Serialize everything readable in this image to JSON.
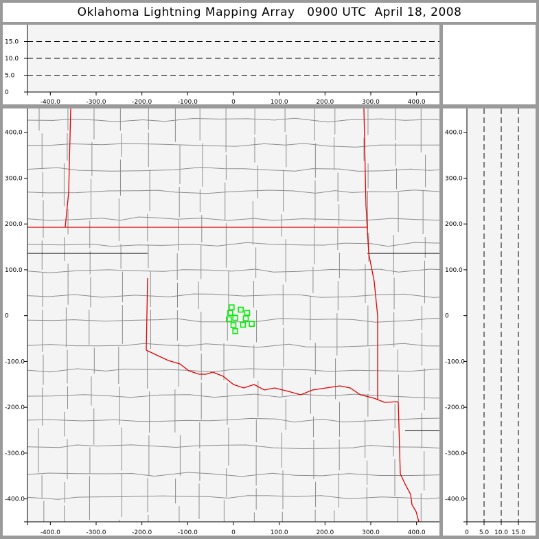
{
  "title": "Oklahoma Lightning Mapping Array   0900 UTC  April 18, 2008",
  "colors": {
    "background": "#9a9a9a",
    "plot": "#f4f4f4",
    "state_border": "#e00000",
    "county": "#8c8c8c",
    "source": "#00ee00"
  },
  "chart_data": [
    {
      "type": "line",
      "panel": "altitude-vs-east-west",
      "xlim": [
        -450,
        450
      ],
      "ylim": [
        0,
        20
      ],
      "x_ticks": [
        "-400.0",
        "-300.0",
        "-200.0",
        "-100.0",
        "0",
        "100.0",
        "200.0",
        "300.0",
        "400.0"
      ],
      "x_tick_values": [
        -400,
        -300,
        -200,
        -100,
        0,
        100,
        200,
        300,
        400
      ],
      "y_ticks": [
        "0",
        "5.0",
        "10.0",
        "15.0"
      ],
      "y_tick_values": [
        0,
        5,
        10,
        15
      ],
      "grid": "dashed horizontal at 5, 10, 15"
    },
    {
      "type": "scatter",
      "panel": "plan-view-map",
      "xlim": [
        -450,
        450
      ],
      "ylim": [
        -450,
        452
      ],
      "x_ticks": [
        "-400.0",
        "-300.0",
        "-200.0",
        "-100.0",
        "0",
        "100.0",
        "200.0",
        "300.0",
        "400.0"
      ],
      "x_tick_values": [
        -400,
        -300,
        -200,
        -100,
        0,
        100,
        200,
        300,
        400
      ],
      "y_ticks": [
        "400.0",
        "300.0",
        "200.0",
        "100.0",
        "0",
        "-100.0",
        "-200.0",
        "-300.0",
        "-400.0"
      ],
      "y_tick_values": [
        400,
        300,
        200,
        100,
        0,
        -100,
        -200,
        -300,
        -400
      ],
      "marker": "hollow-square",
      "points": [
        {
          "x": -4,
          "y": 18
        },
        {
          "x": -7,
          "y": 6
        },
        {
          "x": -10,
          "y": -8
        },
        {
          "x": 4,
          "y": -5
        },
        {
          "x": 16,
          "y": 13
        },
        {
          "x": 30,
          "y": 6
        },
        {
          "x": 27,
          "y": -6
        },
        {
          "x": 0,
          "y": -21
        },
        {
          "x": 21,
          "y": -20
        },
        {
          "x": 40,
          "y": -18
        },
        {
          "x": 4,
          "y": -34
        }
      ]
    },
    {
      "type": "line",
      "panel": "altitude-vs-north-south",
      "xlim": [
        0,
        20
      ],
      "ylim": [
        -450,
        452
      ],
      "x_ticks": [
        "0",
        "5.0",
        "10.0",
        "15.0"
      ],
      "x_tick_values": [
        0,
        5,
        10,
        15
      ],
      "y_ticks": [
        "400.0",
        "300.0",
        "200.0",
        "100.0",
        "0",
        "-100.0",
        "-200.0",
        "-300.0",
        "-400.0"
      ],
      "y_tick_values": [
        400,
        300,
        200,
        100,
        0,
        -100,
        -200,
        -300,
        -400
      ],
      "grid": "dashed vertical at 5, 10, 15"
    }
  ]
}
